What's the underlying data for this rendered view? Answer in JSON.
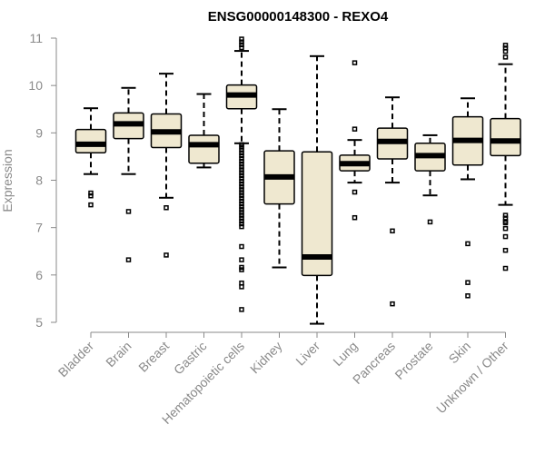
{
  "chart_data": {
    "type": "boxplot",
    "title": "ENSG00000148300 - REXO4",
    "xlabel": "",
    "ylabel": "Expression",
    "ylim": [
      5,
      11
    ],
    "yticks": [
      5,
      6,
      7,
      8,
      9,
      10,
      11
    ],
    "box_fill": "#efe8d0",
    "axis_color": "#8a8a8a",
    "categories": [
      "Bladder",
      "Brain",
      "Breast",
      "Gastric",
      "Hematopoietic cells",
      "Kidney",
      "Liver",
      "Lung",
      "Pancreas",
      "Prostate",
      "Skin",
      "Unknown / Other"
    ],
    "boxes": [
      {
        "whisker_low": 8.13,
        "q1": 8.58,
        "median": 8.76,
        "q3": 9.07,
        "whisker_high": 9.52,
        "outliers": [
          7.67,
          7.73,
          7.48
        ]
      },
      {
        "whisker_low": 8.13,
        "q1": 8.88,
        "median": 9.19,
        "q3": 9.42,
        "whisker_high": 9.95,
        "outliers": [
          7.34,
          6.32
        ]
      },
      {
        "whisker_low": 7.63,
        "q1": 8.69,
        "median": 9.02,
        "q3": 9.4,
        "whisker_high": 10.25,
        "outliers": [
          7.42,
          6.42
        ]
      },
      {
        "whisker_low": 8.27,
        "q1": 8.36,
        "median": 8.75,
        "q3": 8.95,
        "whisker_high": 9.82,
        "outliers": []
      },
      {
        "whisker_low": 8.78,
        "q1": 9.51,
        "median": 9.8,
        "q3": 10.01,
        "whisker_high": 10.73,
        "outliers": [
          10.98,
          10.92,
          10.86,
          10.8,
          8.75,
          8.7,
          8.64,
          8.58,
          8.52,
          8.46,
          8.4,
          8.34,
          8.28,
          8.22,
          8.16,
          8.1,
          8.04,
          7.98,
          7.92,
          7.86,
          7.8,
          7.74,
          7.68,
          7.62,
          7.56,
          7.5,
          7.44,
          7.38,
          7.32,
          7.26,
          7.2,
          7.14,
          7.08,
          7.02,
          6.6,
          6.32,
          6.16,
          6.11,
          5.83,
          5.75,
          5.27
        ]
      },
      {
        "whisker_low": 6.16,
        "q1": 7.5,
        "median": 8.07,
        "q3": 8.62,
        "whisker_high": 9.5,
        "outliers": []
      },
      {
        "whisker_low": 4.97,
        "q1": 5.99,
        "median": 6.38,
        "q3": 8.6,
        "whisker_high": 10.62,
        "outliers": []
      },
      {
        "whisker_low": 7.95,
        "q1": 8.2,
        "median": 8.35,
        "q3": 8.53,
        "whisker_high": 8.85,
        "outliers": [
          10.48,
          9.08,
          7.75,
          7.21
        ]
      },
      {
        "whisker_low": 7.95,
        "q1": 8.45,
        "median": 8.82,
        "q3": 9.1,
        "whisker_high": 9.75,
        "outliers": [
          6.93,
          5.39
        ]
      },
      {
        "whisker_low": 7.68,
        "q1": 8.2,
        "median": 8.52,
        "q3": 8.78,
        "whisker_high": 8.95,
        "outliers": [
          7.12
        ]
      },
      {
        "whisker_low": 8.02,
        "q1": 8.32,
        "median": 8.84,
        "q3": 9.34,
        "whisker_high": 9.73,
        "outliers": [
          6.66,
          5.84,
          5.56
        ]
      },
      {
        "whisker_low": 7.48,
        "q1": 8.52,
        "median": 8.83,
        "q3": 9.3,
        "whisker_high": 10.45,
        "outliers": [
          10.85,
          10.79,
          10.72,
          10.6,
          7.26,
          7.2,
          7.13,
          7.1,
          6.98,
          6.81,
          6.52,
          6.14
        ]
      }
    ]
  }
}
